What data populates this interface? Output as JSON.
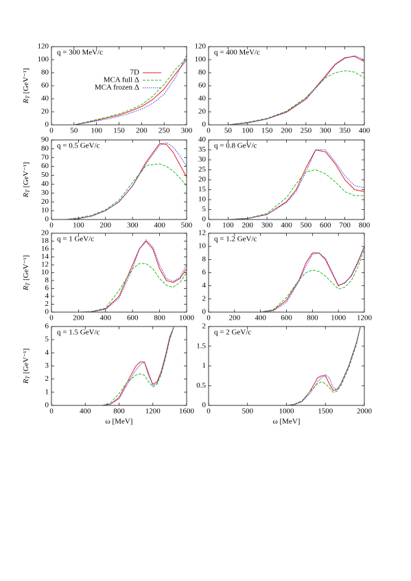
{
  "chart_data": [
    {
      "type": "line",
      "annotation": "q = 300 MeV/c",
      "y_label": {
        "symbol": "R",
        "subscript": "T",
        "unit": "[GeV⁻¹]"
      },
      "x": [
        50,
        75,
        100,
        125,
        150,
        175,
        200,
        225,
        250,
        275,
        300
      ],
      "series": [
        {
          "name": "7D",
          "color": "#e41a1c",
          "style": "solid",
          "values": [
            0,
            3,
            7,
            11,
            15,
            21,
            28,
            39,
            55,
            78,
            100
          ]
        },
        {
          "name": "MCA full Δ",
          "color": "#1dba1d",
          "style": "dashed",
          "values": [
            0,
            4,
            8,
            12,
            17,
            23,
            31,
            44,
            62,
            85,
            102
          ]
        },
        {
          "name": "MCA frozen Δ",
          "color": "#3030e0",
          "style": "dotted",
          "values": [
            0,
            3,
            6,
            9,
            13,
            18,
            24,
            33,
            47,
            72,
            107
          ]
        }
      ],
      "legend": "upper-left",
      "xlim": [
        0,
        300
      ],
      "xticks": [
        0,
        50,
        100,
        150,
        200,
        250,
        300
      ],
      "ylim": [
        0,
        120
      ],
      "yticks": [
        0,
        20,
        40,
        60,
        80,
        100,
        120
      ]
    },
    {
      "type": "line",
      "annotation": "q = 400 MeV/c",
      "x": [
        50,
        100,
        150,
        200,
        250,
        300,
        325,
        350,
        375,
        400
      ],
      "series": [
        {
          "color": "#e41a1c",
          "style": "solid",
          "values": [
            0,
            3,
            9,
            20,
            40,
            75,
            93,
            103,
            105,
            97
          ]
        },
        {
          "color": "#1dba1d",
          "style": "dashed",
          "values": [
            0,
            4,
            10,
            21,
            42,
            72,
            80,
            83,
            81,
            72
          ]
        },
        {
          "color": "#3030e0",
          "style": "dotted",
          "values": [
            0,
            3,
            9,
            19,
            39,
            73,
            92,
            102,
            106,
            100
          ]
        }
      ],
      "xlim": [
        0,
        400
      ],
      "xticks": [
        0,
        50,
        100,
        150,
        200,
        250,
        300,
        350,
        400
      ],
      "ylim": [
        0,
        120
      ],
      "yticks": [
        0,
        20,
        40,
        60,
        80,
        100,
        120
      ]
    },
    {
      "type": "line",
      "annotation": "q = 0.5 GeV/c",
      "y_label": {
        "symbol": "R",
        "subscript": "T",
        "unit": "[GeV⁻¹]"
      },
      "x": [
        50,
        100,
        150,
        200,
        250,
        300,
        350,
        400,
        425,
        450,
        475,
        500
      ],
      "series": [
        {
          "color": "#e41a1c",
          "style": "solid",
          "values": [
            0,
            1,
            4,
            10,
            20,
            38,
            65,
            86,
            85,
            76,
            62,
            48
          ]
        },
        {
          "color": "#1dba1d",
          "style": "dashed",
          "values": [
            0,
            2,
            5,
            11,
            22,
            42,
            61,
            63,
            60,
            55,
            47,
            38
          ]
        },
        {
          "color": "#3030e0",
          "style": "dotted",
          "values": [
            0,
            1,
            4,
            10,
            20,
            38,
            63,
            84,
            87,
            82,
            72,
            60
          ]
        }
      ],
      "xlim": [
        0,
        500
      ],
      "xticks": [
        0,
        100,
        200,
        300,
        400,
        500
      ],
      "ylim": [
        0,
        90
      ],
      "yticks": [
        0,
        10,
        20,
        30,
        40,
        50,
        60,
        70,
        80,
        90
      ]
    },
    {
      "type": "line",
      "annotation": "q = 0.8 GeV/c",
      "x": [
        100,
        200,
        300,
        400,
        450,
        500,
        550,
        600,
        650,
        700,
        750,
        800
      ],
      "series": [
        {
          "color": "#e41a1c",
          "style": "solid",
          "values": [
            0,
            0.5,
            2.5,
            9,
            15,
            26,
            35,
            34,
            28,
            20,
            15,
            14
          ]
        },
        {
          "color": "#1dba1d",
          "style": "dashed",
          "values": [
            0,
            0.6,
            3,
            11,
            18,
            24,
            25,
            23,
            19,
            14,
            12,
            12
          ]
        },
        {
          "color": "#3030e0",
          "style": "dotted",
          "values": [
            0,
            0.5,
            2.5,
            8.5,
            14,
            24,
            35,
            35,
            29,
            22,
            17,
            16
          ]
        }
      ],
      "xlim": [
        0,
        800
      ],
      "xticks": [
        0,
        100,
        200,
        300,
        400,
        500,
        600,
        700,
        800
      ],
      "ylim": [
        0,
        40
      ],
      "yticks": [
        0,
        5,
        10,
        15,
        20,
        25,
        30,
        35,
        40
      ]
    },
    {
      "type": "line",
      "annotation": "q = 1 GeV/c",
      "y_label": {
        "symbol": "R",
        "subscript": "T",
        "unit": "[GeV⁻¹]"
      },
      "x": [
        200,
        300,
        400,
        500,
        600,
        650,
        700,
        750,
        800,
        850,
        900,
        950,
        1000
      ],
      "series": [
        {
          "color": "#e41a1c",
          "style": "solid",
          "values": [
            0,
            0.1,
            0.8,
            4,
            12,
            16,
            18,
            16,
            11,
            8,
            7.5,
            8.5,
            11
          ]
        },
        {
          "color": "#1dba1d",
          "style": "dashed",
          "values": [
            0,
            0.2,
            1,
            5.5,
            11,
            12.3,
            12.3,
            11,
            8.5,
            6.8,
            6.3,
            7.5,
            10
          ]
        },
        {
          "color": "#3030e0",
          "style": "dotted",
          "values": [
            0,
            0.1,
            0.7,
            3.5,
            11,
            16,
            18.3,
            16.5,
            12,
            8.5,
            7.8,
            8.8,
            12
          ]
        }
      ],
      "xlim": [
        0,
        1000
      ],
      "xticks": [
        0,
        200,
        400,
        600,
        800,
        1000
      ],
      "ylim": [
        0,
        20
      ],
      "yticks": [
        0,
        2,
        4,
        6,
        8,
        10,
        12,
        14,
        16,
        18,
        20
      ]
    },
    {
      "type": "line",
      "annotation": "q = 1.2 GeV/c",
      "x": [
        400,
        500,
        600,
        700,
        750,
        800,
        850,
        900,
        1000,
        1050,
        1100,
        1150,
        1200
      ],
      "series": [
        {
          "color": "#e41a1c",
          "style": "solid",
          "values": [
            0,
            0.3,
            1.8,
            5,
            7.5,
            9,
            9,
            8,
            4,
            4.5,
            5.5,
            7.5,
            10
          ]
        },
        {
          "color": "#1dba1d",
          "style": "dashed",
          "values": [
            0,
            0.4,
            2.2,
            5,
            6,
            6.4,
            6.2,
            5.5,
            3.5,
            3.8,
            4.8,
            6.8,
            9.6
          ]
        },
        {
          "color": "#3030e0",
          "style": "dotted",
          "values": [
            0,
            0.2,
            1.5,
            4.8,
            7,
            8.8,
            9,
            8.2,
            4.1,
            4.4,
            5.6,
            7.7,
            10
          ]
        }
      ],
      "xlim": [
        0,
        1200
      ],
      "xticks": [
        0,
        200,
        400,
        600,
        800,
        1000,
        1200
      ],
      "ylim": [
        0,
        12
      ],
      "yticks": [
        0,
        2,
        4,
        6,
        8,
        10,
        12
      ]
    },
    {
      "type": "line",
      "annotation": "q = 1.5 GeV/c",
      "y_label": {
        "symbol": "R",
        "subscript": "T",
        "unit": "[GeV⁻¹]"
      },
      "x_label": "ω [MeV]",
      "x": [
        600,
        700,
        800,
        900,
        1000,
        1050,
        1100,
        1150,
        1200,
        1250,
        1300,
        1350,
        1400,
        1450
      ],
      "series": [
        {
          "color": "#e41a1c",
          "style": "solid",
          "values": [
            0,
            0.1,
            0.6,
            1.8,
            3,
            3.3,
            3.3,
            2.3,
            1.6,
            1.8,
            2.6,
            3.8,
            5.2,
            6
          ]
        },
        {
          "color": "#1dba1d",
          "style": "dashed",
          "values": [
            0,
            0.2,
            0.9,
            1.8,
            2.3,
            2.4,
            2.3,
            1.8,
            1.4,
            1.6,
            2.4,
            3.6,
            5,
            6
          ]
        },
        {
          "color": "#3030e0",
          "style": "dotted",
          "values": [
            0,
            0.1,
            0.5,
            1.6,
            2.7,
            3.1,
            3.3,
            2.5,
            1.5,
            1.7,
            2.5,
            3.7,
            5.1,
            6
          ]
        }
      ],
      "xlim": [
        0,
        1600
      ],
      "xticks": [
        0,
        400,
        800,
        1200,
        1600
      ],
      "ylim": [
        0,
        6
      ],
      "yticks": [
        0,
        1,
        2,
        3,
        4,
        5,
        6
      ]
    },
    {
      "type": "line",
      "annotation": "q = 2 GeV/c",
      "x_label": "ω [MeV]",
      "x": [
        1000,
        1100,
        1200,
        1300,
        1400,
        1450,
        1500,
        1550,
        1600,
        1650,
        1700,
        1800,
        1900,
        1950
      ],
      "series": [
        {
          "color": "#e41a1c",
          "style": "solid",
          "values": [
            0,
            0.02,
            0.1,
            0.35,
            0.7,
            0.75,
            0.75,
            0.55,
            0.38,
            0.4,
            0.55,
            1.0,
            1.6,
            2
          ]
        },
        {
          "color": "#1dba1d",
          "style": "dashed",
          "values": [
            0,
            0.03,
            0.12,
            0.35,
            0.55,
            0.6,
            0.55,
            0.45,
            0.33,
            0.36,
            0.5,
            0.95,
            1.55,
            2
          ]
        },
        {
          "color": "#3030e0",
          "style": "dotted",
          "values": [
            0,
            0.02,
            0.1,
            0.3,
            0.6,
            0.7,
            0.78,
            0.7,
            0.45,
            0.4,
            0.55,
            1.0,
            1.6,
            2
          ]
        }
      ],
      "xlim": [
        0,
        2000
      ],
      "xticks": [
        0,
        500,
        1000,
        1500,
        2000
      ],
      "ylim": [
        0,
        2
      ],
      "yticks": [
        0,
        0.5,
        1,
        1.5,
        2
      ]
    }
  ]
}
